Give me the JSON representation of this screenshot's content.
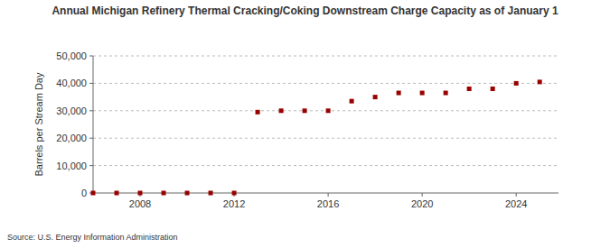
{
  "chart_data": {
    "type": "scatter",
    "title": "Annual Michigan Refinery Thermal Cracking/Coking Downstream Charge Capacity as of January 1",
    "y_label": "Barrels per Stream Day",
    "source": "Source: U.S. Energy Information Administration",
    "x": [
      2006,
      2007,
      2008,
      2009,
      2010,
      2011,
      2012,
      2013,
      2014,
      2015,
      2016,
      2017,
      2018,
      2019,
      2020,
      2021,
      2022,
      2023,
      2024,
      2025
    ],
    "values": [
      0,
      0,
      0,
      0,
      0,
      0,
      0,
      29500,
      30000,
      30000,
      30000,
      33500,
      35000,
      36500,
      36500,
      36500,
      38000,
      38000,
      40000,
      40500
    ],
    "color": "#990000",
    "marker": "square",
    "xlim": [
      2006,
      2025.8
    ],
    "xticks": [
      2008,
      2012,
      2016,
      2020,
      2024
    ],
    "ylim": [
      0,
      50000
    ],
    "yticks": [
      0,
      {
        "value": 10000,
        "label": "10,000"
      },
      {
        "value": 20000,
        "label": "20,000"
      },
      {
        "value": 30000,
        "label": "30,000"
      },
      {
        "value": 40000,
        "label": "40,000"
      },
      {
        "value": 50000,
        "label": "50,000"
      }
    ],
    "grid": true
  }
}
